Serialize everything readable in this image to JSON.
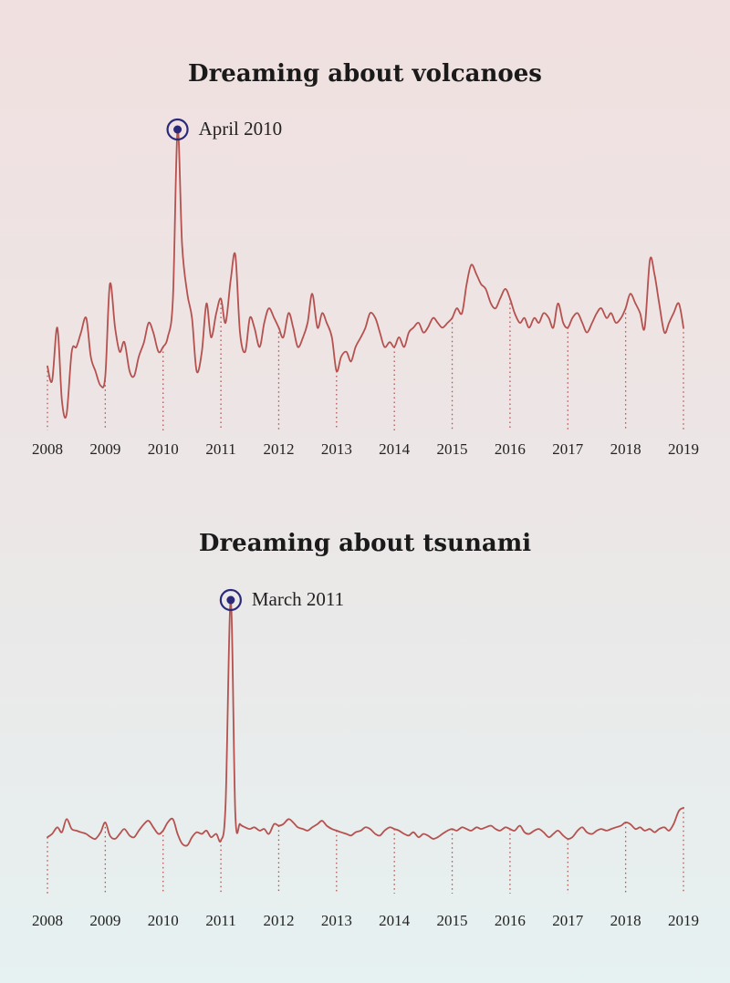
{
  "colors": {
    "line": "#b5524f",
    "guide": "#b5524f",
    "marker": "#2a2a7a"
  },
  "chart_data": [
    {
      "type": "line",
      "title": "Dreaming about volcanoes",
      "x_tick_labels": [
        "2008",
        "2009",
        "2010",
        "2011",
        "2012",
        "2013",
        "2014",
        "2015",
        "2016",
        "2017",
        "2018",
        "2019"
      ],
      "x_range": [
        2008,
        2019
      ],
      "annotation": {
        "label": "April 2010",
        "x": 2010.25
      },
      "series": [
        {
          "points": [
            [
              2008.0,
              22
            ],
            [
              2008.08,
              16
            ],
            [
              2008.17,
              38
            ],
            [
              2008.25,
              8
            ],
            [
              2008.33,
              2
            ],
            [
              2008.42,
              28
            ],
            [
              2008.5,
              30
            ],
            [
              2008.58,
              36
            ],
            [
              2008.67,
              42
            ],
            [
              2008.75,
              26
            ],
            [
              2008.83,
              20
            ],
            [
              2008.92,
              14
            ],
            [
              2009.0,
              18
            ],
            [
              2009.08,
              56
            ],
            [
              2009.17,
              38
            ],
            [
              2009.25,
              28
            ],
            [
              2009.33,
              32
            ],
            [
              2009.42,
              20
            ],
            [
              2009.5,
              18
            ],
            [
              2009.58,
              26
            ],
            [
              2009.67,
              32
            ],
            [
              2009.75,
              40
            ],
            [
              2009.83,
              36
            ],
            [
              2009.92,
              28
            ],
            [
              2010.0,
              30
            ],
            [
              2010.08,
              34
            ],
            [
              2010.17,
              50
            ],
            [
              2010.25,
              120
            ],
            [
              2010.33,
              72
            ],
            [
              2010.42,
              52
            ],
            [
              2010.5,
              42
            ],
            [
              2010.58,
              20
            ],
            [
              2010.67,
              28
            ],
            [
              2010.75,
              48
            ],
            [
              2010.83,
              34
            ],
            [
              2010.92,
              44
            ],
            [
              2011.0,
              50
            ],
            [
              2011.08,
              40
            ],
            [
              2011.17,
              58
            ],
            [
              2011.25,
              68
            ],
            [
              2011.33,
              36
            ],
            [
              2011.42,
              28
            ],
            [
              2011.5,
              42
            ],
            [
              2011.58,
              38
            ],
            [
              2011.67,
              30
            ],
            [
              2011.75,
              40
            ],
            [
              2011.83,
              46
            ],
            [
              2011.92,
              42
            ],
            [
              2012.0,
              38
            ],
            [
              2012.08,
              34
            ],
            [
              2012.17,
              44
            ],
            [
              2012.25,
              38
            ],
            [
              2012.33,
              30
            ],
            [
              2012.42,
              34
            ],
            [
              2012.5,
              40
            ],
            [
              2012.58,
              52
            ],
            [
              2012.67,
              38
            ],
            [
              2012.75,
              44
            ],
            [
              2012.83,
              40
            ],
            [
              2012.92,
              34
            ],
            [
              2013.0,
              20
            ],
            [
              2013.08,
              26
            ],
            [
              2013.17,
              28
            ],
            [
              2013.25,
              24
            ],
            [
              2013.33,
              30
            ],
            [
              2013.42,
              34
            ],
            [
              2013.5,
              38
            ],
            [
              2013.58,
              44
            ],
            [
              2013.67,
              42
            ],
            [
              2013.75,
              36
            ],
            [
              2013.83,
              30
            ],
            [
              2013.92,
              32
            ],
            [
              2014.0,
              30
            ],
            [
              2014.08,
              34
            ],
            [
              2014.17,
              30
            ],
            [
              2014.25,
              36
            ],
            [
              2014.33,
              38
            ],
            [
              2014.42,
              40
            ],
            [
              2014.5,
              36
            ],
            [
              2014.58,
              38
            ],
            [
              2014.67,
              42
            ],
            [
              2014.75,
              40
            ],
            [
              2014.83,
              38
            ],
            [
              2014.92,
              40
            ],
            [
              2015.0,
              42
            ],
            [
              2015.08,
              46
            ],
            [
              2015.17,
              44
            ],
            [
              2015.25,
              56
            ],
            [
              2015.33,
              64
            ],
            [
              2015.42,
              60
            ],
            [
              2015.5,
              56
            ],
            [
              2015.58,
              54
            ],
            [
              2015.67,
              48
            ],
            [
              2015.75,
              46
            ],
            [
              2015.83,
              50
            ],
            [
              2015.92,
              54
            ],
            [
              2016.0,
              50
            ],
            [
              2016.08,
              44
            ],
            [
              2016.17,
              40
            ],
            [
              2016.25,
              42
            ],
            [
              2016.33,
              38
            ],
            [
              2016.42,
              42
            ],
            [
              2016.5,
              40
            ],
            [
              2016.58,
              44
            ],
            [
              2016.67,
              42
            ],
            [
              2016.75,
              38
            ],
            [
              2016.83,
              48
            ],
            [
              2016.92,
              40
            ],
            [
              2017.0,
              38
            ],
            [
              2017.08,
              42
            ],
            [
              2017.17,
              44
            ],
            [
              2017.25,
              40
            ],
            [
              2017.33,
              36
            ],
            [
              2017.42,
              40
            ],
            [
              2017.5,
              44
            ],
            [
              2017.58,
              46
            ],
            [
              2017.67,
              42
            ],
            [
              2017.75,
              44
            ],
            [
              2017.83,
              40
            ],
            [
              2017.92,
              42
            ],
            [
              2018.0,
              46
            ],
            [
              2018.08,
              52
            ],
            [
              2018.17,
              48
            ],
            [
              2018.25,
              44
            ],
            [
              2018.33,
              38
            ],
            [
              2018.42,
              66
            ],
            [
              2018.5,
              60
            ],
            [
              2018.58,
              48
            ],
            [
              2018.67,
              36
            ],
            [
              2018.75,
              40
            ],
            [
              2018.83,
              44
            ],
            [
              2018.92,
              48
            ],
            [
              2019.0,
              38
            ]
          ]
        }
      ]
    },
    {
      "type": "line",
      "title": "Dreaming about tsunami",
      "x_tick_labels": [
        "2008",
        "2009",
        "2010",
        "2011",
        "2012",
        "2013",
        "2014",
        "2015",
        "2016",
        "2017",
        "2018",
        "2019"
      ],
      "x_range": [
        2008,
        2019
      ],
      "annotation": {
        "label": "March 2011",
        "x": 2011.17
      },
      "series": [
        {
          "points": [
            [
              2008.0,
              10
            ],
            [
              2008.08,
              12
            ],
            [
              2008.17,
              16
            ],
            [
              2008.25,
              13
            ],
            [
              2008.33,
              21
            ],
            [
              2008.42,
              15
            ],
            [
              2008.5,
              14
            ],
            [
              2008.58,
              13
            ],
            [
              2008.67,
              12
            ],
            [
              2008.75,
              10
            ],
            [
              2008.83,
              9
            ],
            [
              2008.92,
              13
            ],
            [
              2009.0,
              19
            ],
            [
              2009.08,
              11
            ],
            [
              2009.17,
              9
            ],
            [
              2009.25,
              12
            ],
            [
              2009.33,
              15
            ],
            [
              2009.42,
              11
            ],
            [
              2009.5,
              10
            ],
            [
              2009.58,
              14
            ],
            [
              2009.67,
              18
            ],
            [
              2009.75,
              20
            ],
            [
              2009.83,
              16
            ],
            [
              2009.92,
              12
            ],
            [
              2010.0,
              14
            ],
            [
              2010.08,
              19
            ],
            [
              2010.17,
              21
            ],
            [
              2010.25,
              12
            ],
            [
              2010.33,
              6
            ],
            [
              2010.42,
              5
            ],
            [
              2010.5,
              10
            ],
            [
              2010.58,
              13
            ],
            [
              2010.67,
              12
            ],
            [
              2010.75,
              14
            ],
            [
              2010.83,
              10
            ],
            [
              2010.92,
              12
            ],
            [
              2011.0,
              8
            ],
            [
              2011.08,
              30
            ],
            [
              2011.17,
              155
            ],
            [
              2011.25,
              24
            ],
            [
              2011.33,
              18
            ],
            [
              2011.42,
              16
            ],
            [
              2011.5,
              15
            ],
            [
              2011.58,
              16
            ],
            [
              2011.67,
              14
            ],
            [
              2011.75,
              15
            ],
            [
              2011.83,
              12
            ],
            [
              2011.92,
              18
            ],
            [
              2012.0,
              17
            ],
            [
              2012.08,
              18
            ],
            [
              2012.17,
              21
            ],
            [
              2012.25,
              19
            ],
            [
              2012.33,
              16
            ],
            [
              2012.42,
              15
            ],
            [
              2012.5,
              14
            ],
            [
              2012.58,
              16
            ],
            [
              2012.67,
              18
            ],
            [
              2012.75,
              20
            ],
            [
              2012.83,
              17
            ],
            [
              2012.92,
              15
            ],
            [
              2013.0,
              14
            ],
            [
              2013.08,
              13
            ],
            [
              2013.17,
              12
            ],
            [
              2013.25,
              11
            ],
            [
              2013.33,
              13
            ],
            [
              2013.42,
              14
            ],
            [
              2013.5,
              16
            ],
            [
              2013.58,
              15
            ],
            [
              2013.67,
              12
            ],
            [
              2013.75,
              11
            ],
            [
              2013.83,
              14
            ],
            [
              2013.92,
              16
            ],
            [
              2014.0,
              15
            ],
            [
              2014.08,
              14
            ],
            [
              2014.17,
              12
            ],
            [
              2014.25,
              11
            ],
            [
              2014.33,
              13
            ],
            [
              2014.42,
              10
            ],
            [
              2014.5,
              12
            ],
            [
              2014.58,
              11
            ],
            [
              2014.67,
              9
            ],
            [
              2014.75,
              10
            ],
            [
              2014.83,
              12
            ],
            [
              2014.92,
              14
            ],
            [
              2015.0,
              15
            ],
            [
              2015.08,
              14
            ],
            [
              2015.17,
              16
            ],
            [
              2015.25,
              15
            ],
            [
              2015.33,
              14
            ],
            [
              2015.42,
              16
            ],
            [
              2015.5,
              15
            ],
            [
              2015.58,
              16
            ],
            [
              2015.67,
              17
            ],
            [
              2015.75,
              15
            ],
            [
              2015.83,
              14
            ],
            [
              2015.92,
              16
            ],
            [
              2016.0,
              15
            ],
            [
              2016.08,
              14
            ],
            [
              2016.17,
              17
            ],
            [
              2016.25,
              13
            ],
            [
              2016.33,
              12
            ],
            [
              2016.42,
              14
            ],
            [
              2016.5,
              15
            ],
            [
              2016.58,
              13
            ],
            [
              2016.67,
              10
            ],
            [
              2016.75,
              12
            ],
            [
              2016.83,
              14
            ],
            [
              2016.92,
              11
            ],
            [
              2017.0,
              9
            ],
            [
              2017.08,
              10
            ],
            [
              2017.17,
              14
            ],
            [
              2017.25,
              16
            ],
            [
              2017.33,
              13
            ],
            [
              2017.42,
              12
            ],
            [
              2017.5,
              14
            ],
            [
              2017.58,
              15
            ],
            [
              2017.67,
              14
            ],
            [
              2017.75,
              15
            ],
            [
              2017.83,
              16
            ],
            [
              2017.92,
              17
            ],
            [
              2018.0,
              19
            ],
            [
              2018.08,
              18
            ],
            [
              2018.17,
              15
            ],
            [
              2018.25,
              16
            ],
            [
              2018.33,
              14
            ],
            [
              2018.42,
              15
            ],
            [
              2018.5,
              13
            ],
            [
              2018.58,
              15
            ],
            [
              2018.67,
              16
            ],
            [
              2018.75,
              14
            ],
            [
              2018.83,
              18
            ],
            [
              2018.92,
              26
            ],
            [
              2019.0,
              28
            ]
          ]
        }
      ]
    }
  ]
}
